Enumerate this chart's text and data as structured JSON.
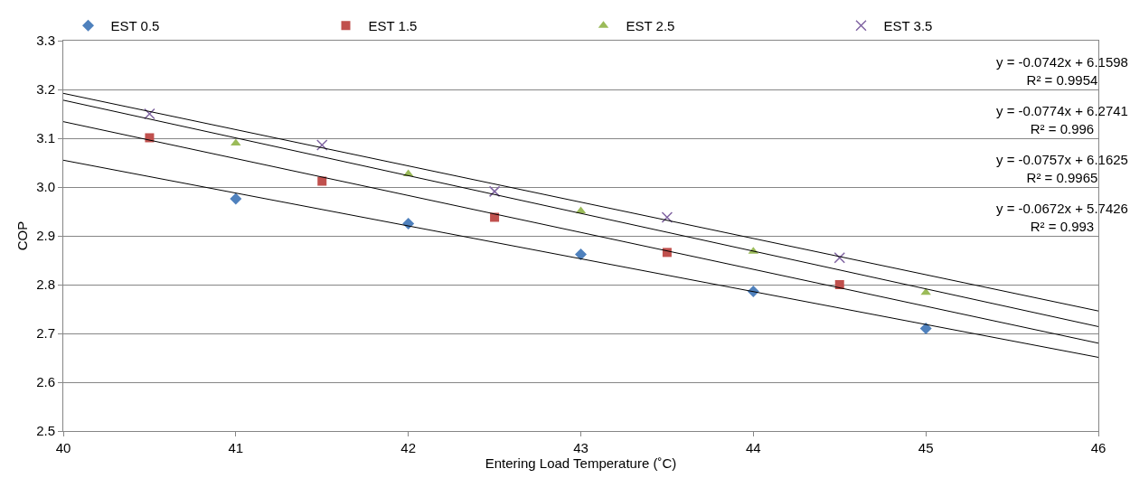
{
  "chart_data": {
    "type": "scatter",
    "xlabel": "Entering Load Temperature (˚C)",
    "ylabel": "COP",
    "xlim": [
      40,
      46
    ],
    "xticks": [
      40,
      41,
      42,
      43,
      44,
      45,
      46
    ],
    "ylim": [
      2.5,
      3.3
    ],
    "yticks": [
      {
        "value": 2.5,
        "label": "2.5"
      },
      {
        "value": 2.6,
        "label": "2.6"
      },
      {
        "value": 2.7,
        "label": "2.7"
      },
      {
        "value": 2.8,
        "label": "2.8"
      },
      {
        "value": 2.9,
        "label": "2.9"
      },
      {
        "value": 3.0,
        "label": "3.0"
      },
      {
        "value": 3.1,
        "label": "3.1"
      },
      {
        "value": 3.2,
        "label": "3.2"
      },
      {
        "value": 3.3,
        "label": "3.3"
      }
    ],
    "grid": "y",
    "legend": "top",
    "series": [
      {
        "name": "EST 0.5",
        "color": "#4f81bd",
        "marker": "diamond",
        "x": [
          41,
          42,
          43,
          44,
          45
        ],
        "values": [
          2.976,
          2.925,
          2.862,
          2.786,
          2.71
        ]
      },
      {
        "name": "EST 1.5",
        "color": "#c0504d",
        "marker": "square",
        "x": [
          40.5,
          41.5,
          42.5,
          43.5,
          44.5
        ],
        "values": [
          3.101,
          3.012,
          2.938,
          2.866,
          2.8
        ]
      },
      {
        "name": "EST 2.5",
        "color": "#9bbb59",
        "marker": "triangle",
        "x": [
          41,
          42,
          43,
          44,
          45
        ],
        "values": [
          3.09,
          3.027,
          2.951,
          2.868,
          2.784
        ]
      },
      {
        "name": "EST 3.5",
        "color": "#8064a2",
        "marker": "cross",
        "x": [
          40.5,
          41.5,
          42.5,
          43.5,
          44.5
        ],
        "values": [
          3.15,
          3.086,
          2.991,
          2.938,
          2.855
        ]
      },
      {
        "type": "line",
        "color": "#000000",
        "marker": "none",
        "x": [
          40,
          46
        ],
        "values": [
          3.192,
          2.746
        ]
      },
      {
        "type": "line",
        "color": "#000000",
        "marker": "none",
        "x": [
          40,
          46
        ],
        "values": [
          3.178,
          2.714
        ]
      },
      {
        "type": "line",
        "color": "#000000",
        "marker": "none",
        "x": [
          40,
          46
        ],
        "values": [
          3.134,
          2.68
        ]
      },
      {
        "type": "line",
        "color": "#000000",
        "marker": "none",
        "x": [
          40,
          46
        ],
        "values": [
          3.055,
          2.651
        ]
      }
    ],
    "annotations": [
      "y = -0.0742x + 6.1598\nR² = 0.9954",
      "y = -0.0774x + 6.2741\nR² = 0.996",
      "y = -0.0757x + 6.1625\nR² = 0.9965",
      "y = -0.0672x + 5.7426\nR² = 0.993"
    ]
  }
}
